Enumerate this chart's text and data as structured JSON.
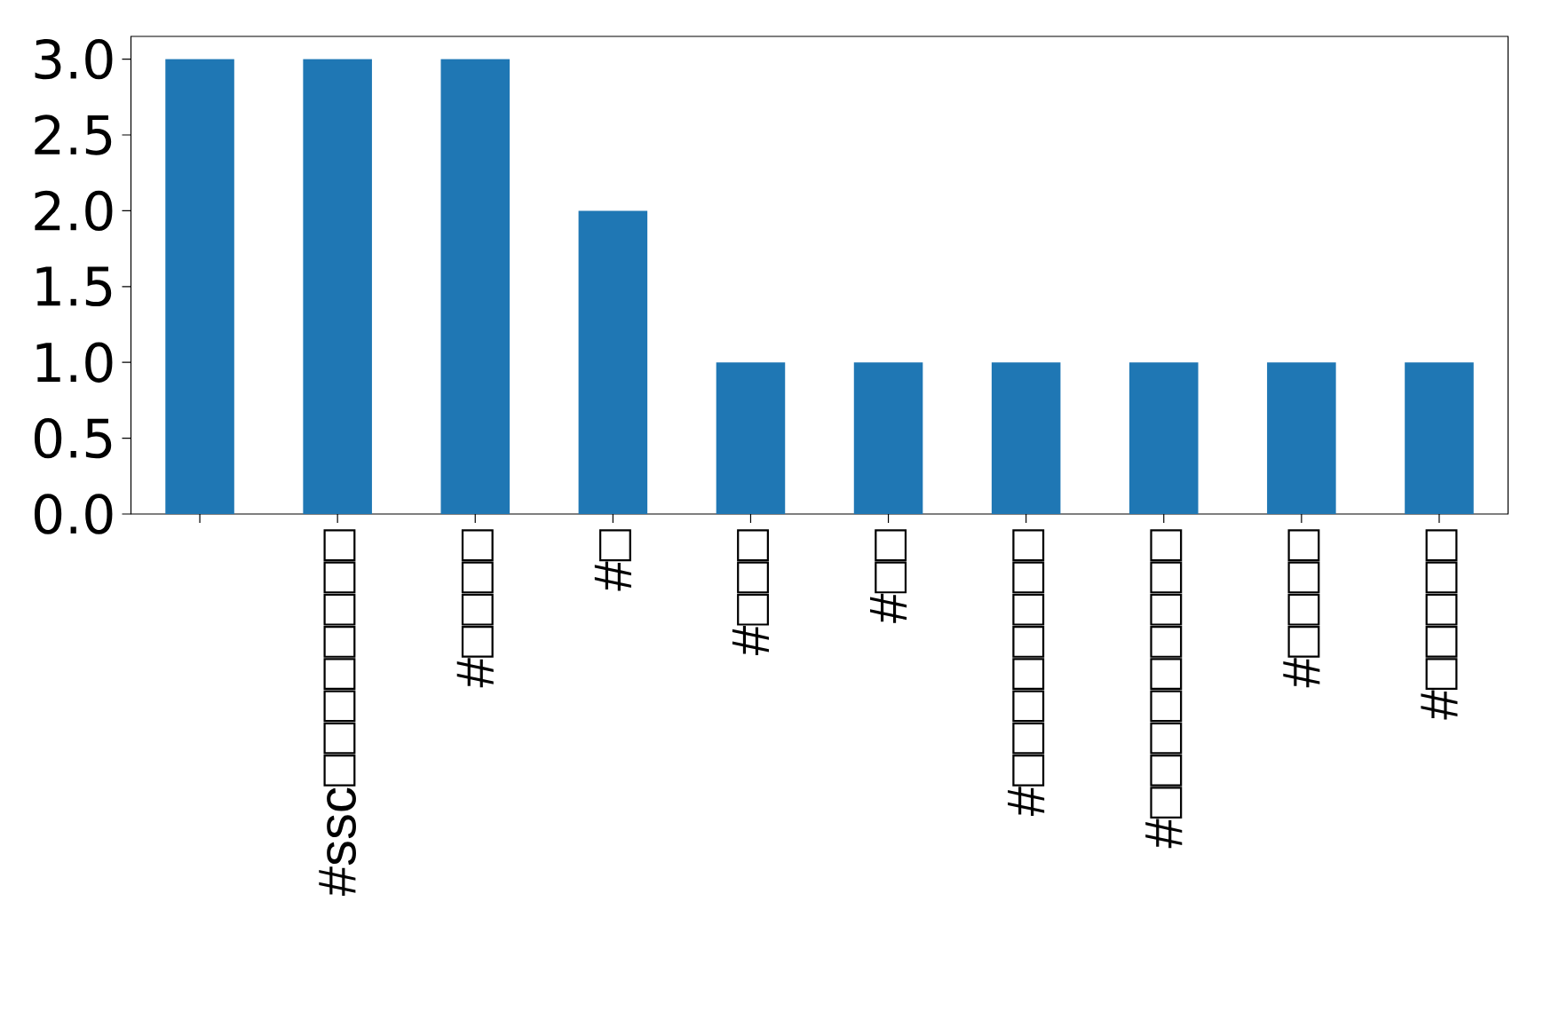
{
  "chart_data": {
    "type": "bar",
    "categories": [
      null,
      "#ssc□□□□□□□□",
      "#□□□□",
      "#□",
      "#□□□",
      "#□□",
      "#□□□□□□□□",
      "#□□□□□□□□□",
      "#□□□□",
      "#□□□□□"
    ],
    "values": [
      3,
      3,
      3,
      2,
      1,
      1,
      1,
      1,
      1,
      1
    ],
    "color": "#1f77b4",
    "ylim": [
      0,
      3.15
    ],
    "yticks": [
      {
        "value": 0,
        "label": "0.0"
      },
      {
        "value": 0.5,
        "label": "0.5"
      },
      {
        "value": 1,
        "label": "1.0"
      },
      {
        "value": 1.5,
        "label": "1.5"
      },
      {
        "value": 2,
        "label": "2.0"
      },
      {
        "value": 2.5,
        "label": "2.5"
      },
      {
        "value": 3,
        "label": "3.0"
      }
    ],
    "grid": false
  }
}
